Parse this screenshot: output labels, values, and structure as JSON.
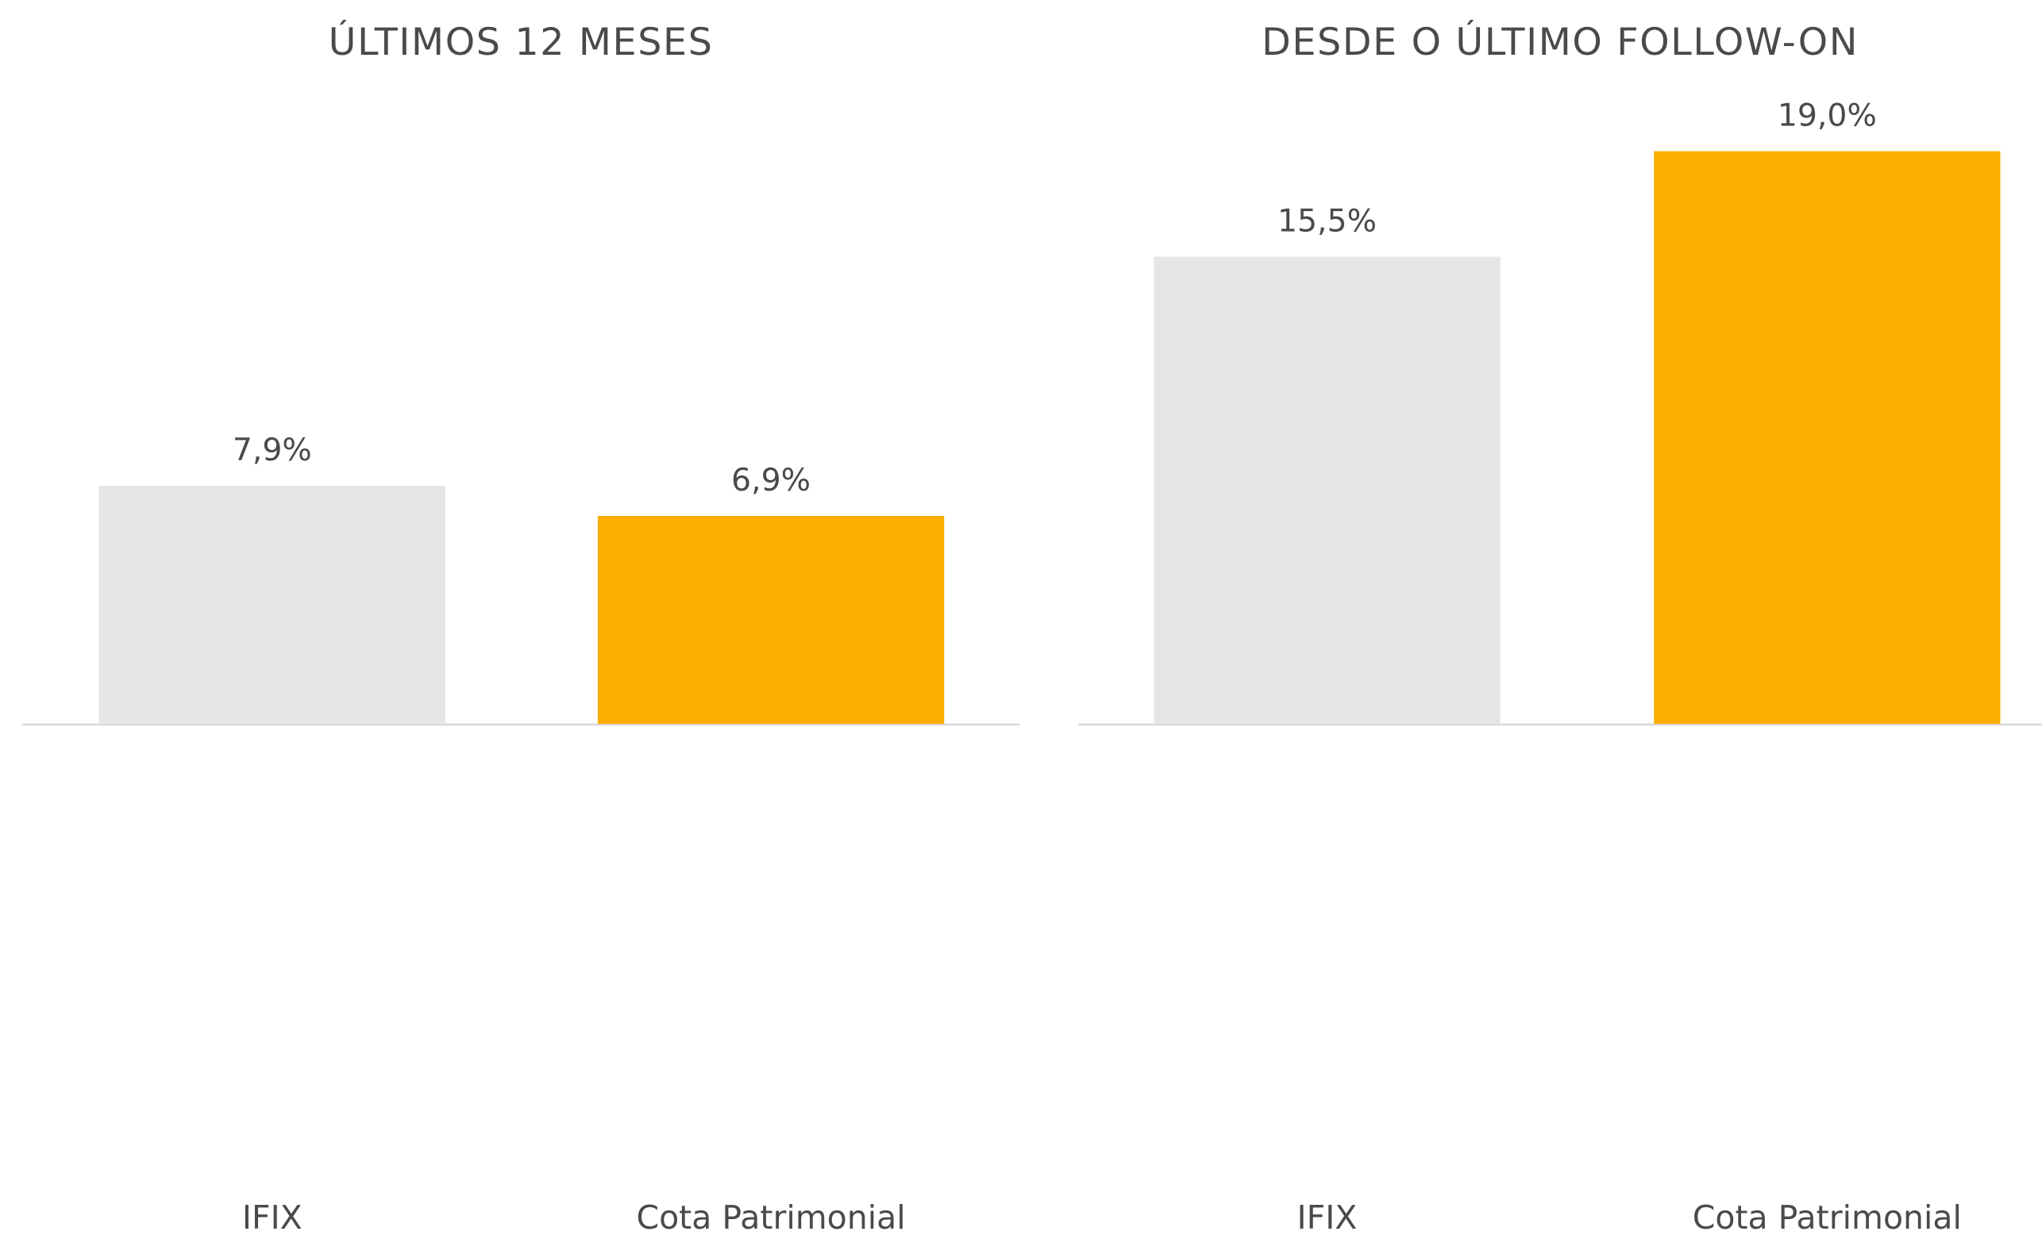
{
  "chart_data": [
    {
      "type": "bar",
      "title": "ÚLTIMOS 12 MESES",
      "categories": [
        "IFIX",
        "Cota Patrimonial"
      ],
      "values": [
        7.9,
        6.9
      ],
      "value_labels": [
        "7,9%",
        "6,9%"
      ],
      "colors": [
        "#e6e6e6",
        "#f9ae00"
      ]
    },
    {
      "type": "bar",
      "title": "DESDE O ÚLTIMO FOLLOW-ON",
      "categories": [
        "IFIX",
        "Cota Patrimonial"
      ],
      "values": [
        15.5,
        19.0
      ],
      "value_labels": [
        "15,5%",
        "19,0%"
      ],
      "colors": [
        "#e6e6e6",
        "#f9ae00"
      ]
    }
  ]
}
